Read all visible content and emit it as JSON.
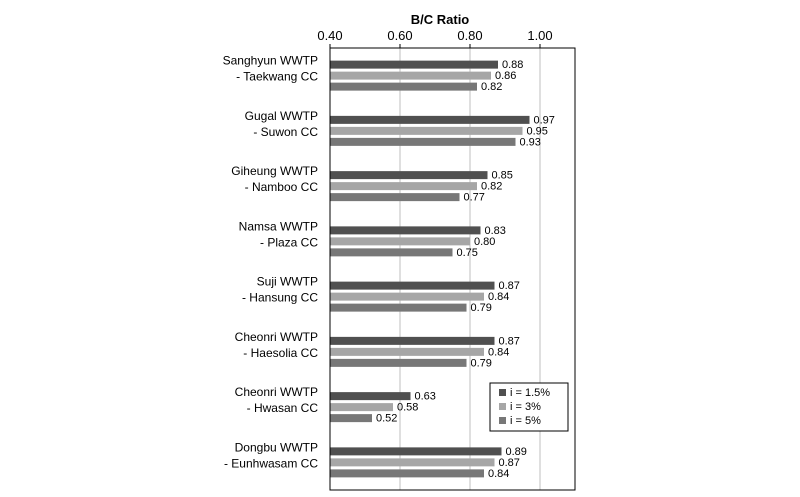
{
  "chart_data": {
    "type": "bar",
    "orientation": "horizontal",
    "title": "B/C Ratio",
    "xlim": [
      0.4,
      1.1
    ],
    "xticks": [
      "0.40",
      "0.60",
      "0.80",
      "1.00"
    ],
    "grid": true,
    "legend_position": "lower-right",
    "categories": [
      [
        "Sanghyun WWTP",
        "- Taekwang CC"
      ],
      [
        "Gugal WWTP",
        "- Suwon CC"
      ],
      [
        "Giheung WWTP",
        "- Namboo CC"
      ],
      [
        "Namsa WWTP",
        "- Plaza CC"
      ],
      [
        "Suji WWTP",
        "- Hansung CC"
      ],
      [
        "Cheonri WWTP",
        "- Haesolia CC"
      ],
      [
        "Cheonri WWTP",
        "- Hwasan CC"
      ],
      [
        "Dongbu WWTP",
        "- Eunhwasam CC"
      ]
    ],
    "series": [
      {
        "name": "i = 1.5%",
        "color": "#505050",
        "values": [
          0.88,
          0.97,
          0.85,
          0.83,
          0.87,
          0.87,
          0.63,
          0.89
        ]
      },
      {
        "name": "i = 3%",
        "color": "#a6a6a6",
        "values": [
          0.86,
          0.95,
          0.82,
          0.8,
          0.84,
          0.84,
          0.58,
          0.87
        ]
      },
      {
        "name": "i = 5%",
        "color": "#777777",
        "values": [
          0.82,
          0.93,
          0.77,
          0.75,
          0.79,
          0.79,
          0.52,
          0.84
        ]
      }
    ]
  }
}
